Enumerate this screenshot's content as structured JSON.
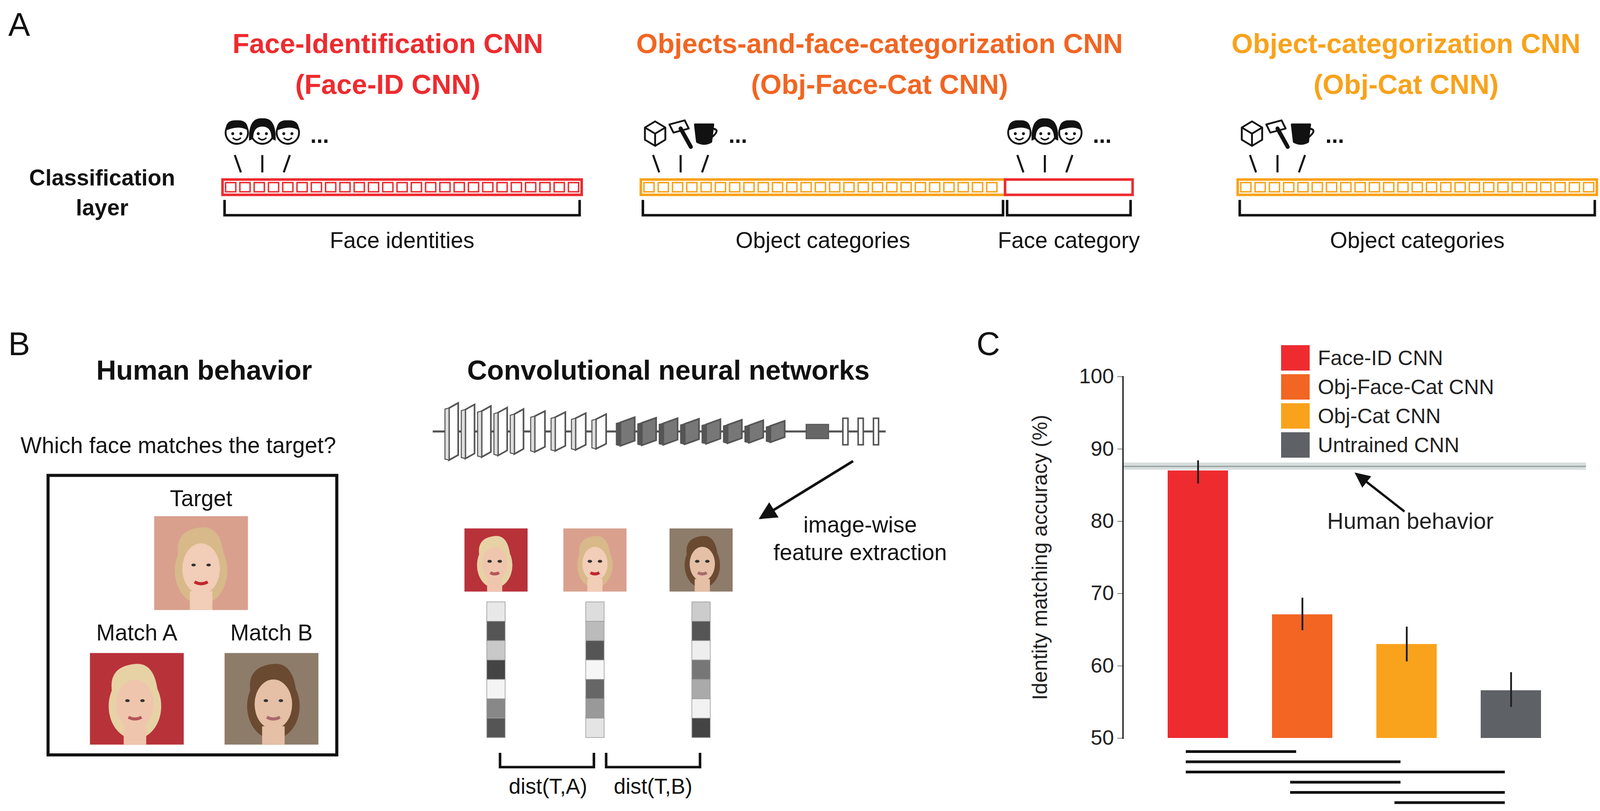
{
  "panel_a": {
    "label": "A",
    "row_label": [
      "Classification",
      "layer"
    ],
    "ellipsis": "...",
    "networks": [
      {
        "title": "Face-Identification CNN",
        "abbreviation": "(Face-ID CNN)",
        "color": "#ee2b2f",
        "segments": [
          {
            "label": "Face identities",
            "kind": "faces",
            "color": "#ee2b2f"
          }
        ]
      },
      {
        "title": "Objects-and-face-categorization CNN",
        "abbreviation": "(Obj-Face-Cat CNN)",
        "color": "#f26522",
        "segments": [
          {
            "label": "Object categories",
            "kind": "objects",
            "color": "#f9a21b"
          },
          {
            "label": "Face category",
            "kind": "faces",
            "color": "#ee2b2f"
          }
        ]
      },
      {
        "title": "Object-categorization CNN",
        "abbreviation": "(Obj-Cat CNN)",
        "color": "#f9a21b",
        "segments": [
          {
            "label": "Object categories",
            "kind": "objects",
            "color": "#f9a21b"
          }
        ]
      }
    ]
  },
  "panel_b": {
    "label": "B",
    "human": {
      "title": "Human behavior",
      "question": "Which face matches the target?",
      "images": [
        "Target",
        "Match A",
        "Match B"
      ]
    },
    "cnn": {
      "title": "Convolutional neural networks",
      "annotation": [
        "image-wise",
        "feature extraction"
      ],
      "distances": [
        "dist(T,A)",
        "dist(T,B)"
      ]
    }
  },
  "chart_data": {
    "type": "bar",
    "panel_label": "C",
    "categories": [
      "Face-ID CNN",
      "Obj-Face-Cat CNN",
      "Obj-Cat CNN",
      "Untrained CNN"
    ],
    "values": [
      87.0,
      67.1,
      63.0,
      56.6
    ],
    "error_low": [
      85.2,
      64.9,
      60.6,
      54.3
    ],
    "error_high": [
      88.4,
      69.4,
      65.4,
      59.1
    ],
    "colors": [
      "#ee2b2f",
      "#f26522",
      "#f9a21b",
      "#5e6266"
    ],
    "ylabel": "Identity matching accuracy (%)",
    "ylim": [
      50,
      100
    ],
    "yticks": [
      50,
      60,
      70,
      80,
      90,
      100
    ],
    "legend": "top-right",
    "tick_labels": "y",
    "reference": {
      "label": "Human behavior",
      "value": 87.6,
      "band": [
        87.1,
        88.1
      ],
      "color": "#9ea3a3"
    },
    "significant_pairs": [
      [
        "Face-ID CNN",
        "Obj-Face-Cat CNN"
      ],
      [
        "Face-ID CNN",
        "Obj-Cat CNN"
      ],
      [
        "Face-ID CNN",
        "Untrained CNN"
      ],
      [
        "Obj-Face-Cat CNN",
        "Obj-Cat CNN"
      ],
      [
        "Obj-Face-Cat CNN",
        "Untrained CNN"
      ],
      [
        "Obj-Cat CNN",
        "Untrained CNN"
      ]
    ]
  }
}
